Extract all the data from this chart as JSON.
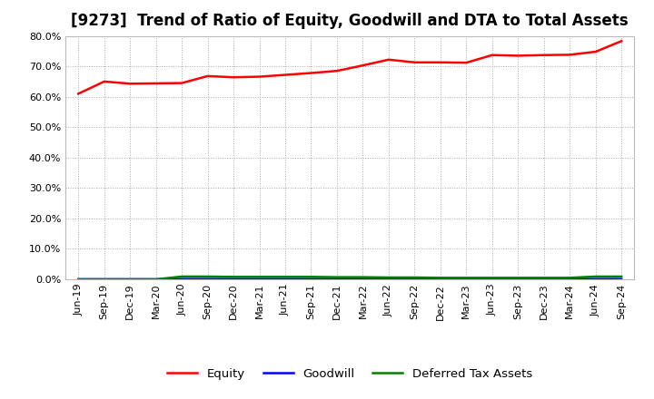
{
  "title": "[9273]  Trend of Ratio of Equity, Goodwill and DTA to Total Assets",
  "x_labels": [
    "Jun-19",
    "Sep-19",
    "Dec-19",
    "Mar-20",
    "Jun-20",
    "Sep-20",
    "Dec-20",
    "Mar-21",
    "Jun-21",
    "Sep-21",
    "Dec-21",
    "Mar-22",
    "Jun-22",
    "Sep-22",
    "Dec-22",
    "Mar-23",
    "Jun-23",
    "Sep-23",
    "Dec-23",
    "Mar-24",
    "Jun-24",
    "Sep-24"
  ],
  "equity": [
    0.61,
    0.65,
    0.643,
    0.644,
    0.645,
    0.668,
    0.664,
    0.666,
    0.672,
    0.678,
    0.685,
    0.703,
    0.722,
    0.713,
    0.713,
    0.712,
    0.737,
    0.735,
    0.737,
    0.738,
    0.748,
    0.783
  ],
  "goodwill": [
    0.0,
    0.0,
    0.0,
    0.0,
    0.001,
    0.001,
    0.001,
    0.001,
    0.001,
    0.001,
    0.001,
    0.001,
    0.001,
    0.001,
    0.001,
    0.001,
    0.001,
    0.001,
    0.001,
    0.001,
    0.001,
    0.001
  ],
  "dta": [
    0.0,
    0.0,
    0.0,
    0.0,
    0.009,
    0.009,
    0.008,
    0.008,
    0.008,
    0.008,
    0.007,
    0.007,
    0.006,
    0.006,
    0.005,
    0.005,
    0.005,
    0.005,
    0.005,
    0.005,
    0.009,
    0.009
  ],
  "equity_color": "#ff0000",
  "goodwill_color": "#0000ff",
  "dta_color": "#008000",
  "background_color": "#ffffff",
  "grid_color": "#aaaaaa",
  "ylim": [
    0.0,
    0.8
  ],
  "yticks": [
    0.0,
    0.1,
    0.2,
    0.3,
    0.4,
    0.5,
    0.6,
    0.7,
    0.8
  ],
  "x_data_labels": [
    "Jun-19",
    "Sep-19",
    "Dec-19",
    "Mar-20",
    "Jun-20",
    "Sep-20",
    "Dec-20",
    "Mar-21",
    "Jun-21",
    "Sep-21",
    "Dec-21",
    "Mar-22",
    "Jun-22",
    "Sep-22",
    "Dec-22",
    "Mar-23",
    "Jun-23",
    "Sep-23",
    "Dec-23",
    "Mar-24",
    "Jun-24"
  ],
  "legend_labels": [
    "Equity",
    "Goodwill",
    "Deferred Tax Assets"
  ],
  "linewidth": 1.8,
  "title_fontsize": 12,
  "tick_fontsize": 8,
  "legend_fontsize": 9.5
}
